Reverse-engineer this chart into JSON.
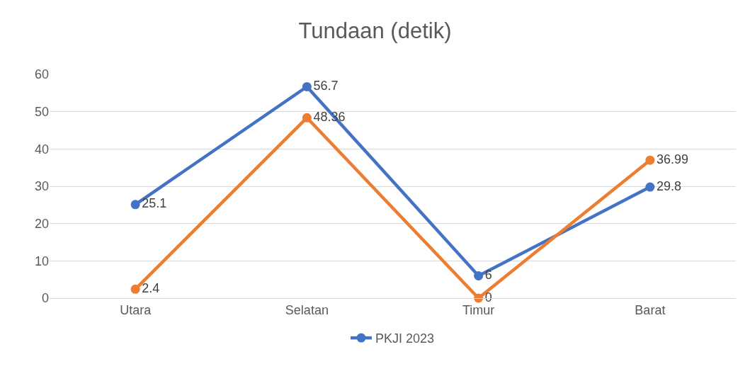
{
  "chart_data": {
    "type": "line",
    "title": "Tundaan (detik)",
    "categories": [
      "Utara",
      "Selatan",
      "Timur",
      "Barat"
    ],
    "series": [
      {
        "name": "PKJI 2023",
        "color": "#4472c4",
        "values": [
          25.1,
          56.7,
          6,
          29.8
        ]
      },
      {
        "color": "#ed7d31",
        "values": [
          2.4,
          48.36,
          0,
          36.99
        ]
      }
    ],
    "ylim": [
      0,
      60
    ],
    "yticks": [
      0,
      10,
      20,
      30,
      40,
      50,
      60
    ],
    "grid": "y",
    "legend": "bottom",
    "marker": "circle",
    "line_style": "solid",
    "data_labels": true
  }
}
